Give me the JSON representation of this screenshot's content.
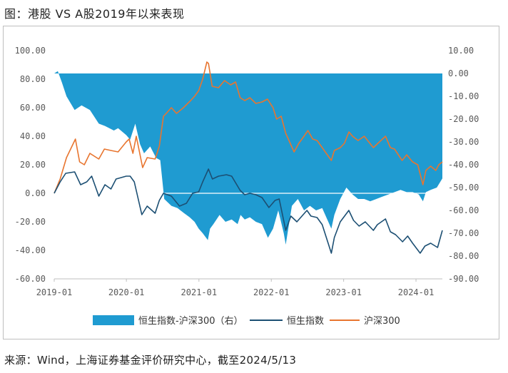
{
  "header": {
    "title": "图：港股 VS A股2019年以来表现"
  },
  "footer": {
    "source": "来源：Wind，上海证券基金评价研究中心，截至2024/5/13"
  },
  "chart_data": {
    "type": "area",
    "x_start": "2019-01-02",
    "x_end": "2024-05-13",
    "x_ticks": [
      {
        "label": "2019-01",
        "date": "2019-01-01"
      },
      {
        "label": "2020-01",
        "date": "2020-01-01"
      },
      {
        "label": "2021-01",
        "date": "2021-01-01"
      },
      {
        "label": "2022-01",
        "date": "2022-01-01"
      },
      {
        "label": "2023-01",
        "date": "2023-01-01"
      },
      {
        "label": "2024-01",
        "date": "2024-01-01"
      }
    ],
    "y_left": {
      "range": [
        -60,
        100
      ],
      "ticks": [
        "100.00",
        "80.00",
        "60.00",
        "40.00",
        "20.00",
        "0.00",
        "-20.00",
        "-40.00",
        "-60.00"
      ]
    },
    "y_right": {
      "range": [
        -90,
        10
      ],
      "ticks": [
        "10.00",
        "0.00",
        "-10.00",
        "-20.00",
        "-30.00",
        "-40.00",
        "-50.00",
        "-60.00",
        "-70.00",
        "-80.00",
        "-90.00"
      ]
    },
    "legend": [
      "恒生指数-沪深300（右）",
      "恒生指数",
      "沪深300"
    ],
    "colors": {
      "area": "#1f9bd1",
      "hsi": "#1c4f73",
      "csi": "#e8752f"
    },
    "series": [
      {
        "name": "沪深300",
        "axis": "left",
        "points": [
          [
            "2019-01-02",
            0
          ],
          [
            "2019-02-01",
            10
          ],
          [
            "2019-03-05",
            25
          ],
          [
            "2019-04-19",
            38
          ],
          [
            "2019-05-10",
            22
          ],
          [
            "2019-06-03",
            20
          ],
          [
            "2019-07-01",
            28
          ],
          [
            "2019-08-15",
            24
          ],
          [
            "2019-09-12",
            31
          ],
          [
            "2019-10-15",
            30
          ],
          [
            "2019-11-20",
            29
          ],
          [
            "2019-12-31",
            36
          ],
          [
            "2020-01-15",
            38
          ],
          [
            "2020-02-03",
            28
          ],
          [
            "2020-02-20",
            40
          ],
          [
            "2020-03-23",
            18
          ],
          [
            "2020-04-15",
            25
          ],
          [
            "2020-05-25",
            24
          ],
          [
            "2020-06-15",
            33
          ],
          [
            "2020-07-06",
            54
          ],
          [
            "2020-07-20",
            56
          ],
          [
            "2020-08-15",
            60
          ],
          [
            "2020-09-10",
            56
          ],
          [
            "2020-10-15",
            60
          ],
          [
            "2020-11-20",
            65
          ],
          [
            "2020-12-10",
            68
          ],
          [
            "2020-12-31",
            72
          ],
          [
            "2021-01-20",
            80
          ],
          [
            "2021-02-10",
            92
          ],
          [
            "2021-02-18",
            91
          ],
          [
            "2021-03-09",
            75
          ],
          [
            "2021-04-10",
            74
          ],
          [
            "2021-05-10",
            79
          ],
          [
            "2021-06-10",
            76
          ],
          [
            "2021-07-05",
            78
          ],
          [
            "2021-07-28",
            67
          ],
          [
            "2021-08-20",
            65
          ],
          [
            "2021-09-15",
            67
          ],
          [
            "2021-10-15",
            63
          ],
          [
            "2021-11-15",
            64
          ],
          [
            "2021-12-13",
            66
          ],
          [
            "2022-01-10",
            60
          ],
          [
            "2022-01-28",
            52
          ],
          [
            "2022-02-20",
            54
          ],
          [
            "2022-03-15",
            42
          ],
          [
            "2022-04-26",
            29
          ],
          [
            "2022-05-20",
            35
          ],
          [
            "2022-06-15",
            40
          ],
          [
            "2022-07-05",
            44
          ],
          [
            "2022-07-29",
            38
          ],
          [
            "2022-08-20",
            37
          ],
          [
            "2022-09-15",
            32
          ],
          [
            "2022-10-31",
            23
          ],
          [
            "2022-11-15",
            30
          ],
          [
            "2022-12-15",
            32
          ],
          [
            "2023-01-05",
            35
          ],
          [
            "2023-01-28",
            43
          ],
          [
            "2023-02-15",
            40
          ],
          [
            "2023-03-15",
            37
          ],
          [
            "2023-04-15",
            40
          ],
          [
            "2023-05-31",
            32
          ],
          [
            "2023-06-15",
            34
          ],
          [
            "2023-07-31",
            40
          ],
          [
            "2023-08-25",
            32
          ],
          [
            "2023-09-15",
            31
          ],
          [
            "2023-10-23",
            23
          ],
          [
            "2023-11-15",
            27
          ],
          [
            "2023-12-15",
            22
          ],
          [
            "2024-01-10",
            20
          ],
          [
            "2024-02-05",
            6
          ],
          [
            "2024-02-20",
            16
          ],
          [
            "2024-03-15",
            19
          ],
          [
            "2024-04-10",
            16
          ],
          [
            "2024-04-25",
            20
          ],
          [
            "2024-05-13",
            22
          ]
        ]
      },
      {
        "name": "恒生指数",
        "axis": "left",
        "points": [
          [
            "2019-01-02",
            0
          ],
          [
            "2019-02-01",
            8
          ],
          [
            "2019-03-01",
            14
          ],
          [
            "2019-04-15",
            15
          ],
          [
            "2019-05-15",
            6
          ],
          [
            "2019-06-15",
            8
          ],
          [
            "2019-07-10",
            12
          ],
          [
            "2019-08-15",
            -2
          ],
          [
            "2019-09-15",
            6
          ],
          [
            "2019-10-15",
            3
          ],
          [
            "2019-11-10",
            10
          ],
          [
            "2019-12-31",
            12
          ],
          [
            "2020-01-20",
            12
          ],
          [
            "2020-02-10",
            8
          ],
          [
            "2020-03-19",
            -15
          ],
          [
            "2020-04-15",
            -9
          ],
          [
            "2020-05-25",
            -14
          ],
          [
            "2020-06-15",
            -5
          ],
          [
            "2020-07-06",
            0
          ],
          [
            "2020-08-15",
            -2
          ],
          [
            "2020-09-25",
            -9
          ],
          [
            "2020-10-30",
            -7
          ],
          [
            "2020-11-30",
            0
          ],
          [
            "2020-12-31",
            1
          ],
          [
            "2021-01-20",
            8
          ],
          [
            "2021-02-18",
            17
          ],
          [
            "2021-03-10",
            10
          ],
          [
            "2021-04-10",
            12
          ],
          [
            "2021-05-20",
            13
          ],
          [
            "2021-06-15",
            12
          ],
          [
            "2021-07-28",
            2
          ],
          [
            "2021-08-20",
            -1
          ],
          [
            "2021-09-15",
            0
          ],
          [
            "2021-10-15",
            -1
          ],
          [
            "2021-11-15",
            -3
          ],
          [
            "2021-12-20",
            -10
          ],
          [
            "2022-01-20",
            -5
          ],
          [
            "2022-02-10",
            -4
          ],
          [
            "2022-03-15",
            -26
          ],
          [
            "2022-04-10",
            -16
          ],
          [
            "2022-05-10",
            -20
          ],
          [
            "2022-06-30",
            -12
          ],
          [
            "2022-07-20",
            -16
          ],
          [
            "2022-08-20",
            -17
          ],
          [
            "2022-09-15",
            -22
          ],
          [
            "2022-10-31",
            -42
          ],
          [
            "2022-11-15",
            -31
          ],
          [
            "2022-12-15",
            -20
          ],
          [
            "2023-01-27",
            -12
          ],
          [
            "2023-02-20",
            -19
          ],
          [
            "2023-03-20",
            -23
          ],
          [
            "2023-04-20",
            -20
          ],
          [
            "2023-05-31",
            -26
          ],
          [
            "2023-06-20",
            -22
          ],
          [
            "2023-07-31",
            -18
          ],
          [
            "2023-08-25",
            -27
          ],
          [
            "2023-09-20",
            -29
          ],
          [
            "2023-10-25",
            -34
          ],
          [
            "2023-11-20",
            -30
          ],
          [
            "2023-12-15",
            -35
          ],
          [
            "2024-01-22",
            -42
          ],
          [
            "2024-02-15",
            -37
          ],
          [
            "2024-03-15",
            -35
          ],
          [
            "2024-04-19",
            -38
          ],
          [
            "2024-05-13",
            -26
          ]
        ]
      },
      {
        "name": "恒生指数-沪深300（右）",
        "axis": "right",
        "type": "area",
        "points": [
          [
            "2019-01-02",
            0
          ],
          [
            "2019-01-20",
            1
          ],
          [
            "2019-02-10",
            -4
          ],
          [
            "2019-03-05",
            -10
          ],
          [
            "2019-04-15",
            -16
          ],
          [
            "2019-05-20",
            -14
          ],
          [
            "2019-07-01",
            -16
          ],
          [
            "2019-08-15",
            -22
          ],
          [
            "2019-09-15",
            -23
          ],
          [
            "2019-10-30",
            -25
          ],
          [
            "2019-11-20",
            -24
          ],
          [
            "2019-12-31",
            -27
          ],
          [
            "2020-01-20",
            -29
          ],
          [
            "2020-02-15",
            -22
          ],
          [
            "2020-03-10",
            -31
          ],
          [
            "2020-03-30",
            -35
          ],
          [
            "2020-04-30",
            -32
          ],
          [
            "2020-05-30",
            -37
          ],
          [
            "2020-06-20",
            -38
          ],
          [
            "2020-07-10",
            -55
          ],
          [
            "2020-08-15",
            -58
          ],
          [
            "2020-09-15",
            -59
          ],
          [
            "2020-10-15",
            -61
          ],
          [
            "2020-11-15",
            -63
          ],
          [
            "2020-12-10",
            -65
          ],
          [
            "2020-12-31",
            -68
          ],
          [
            "2021-01-20",
            -70
          ],
          [
            "2021-02-15",
            -73
          ],
          [
            "2021-02-26",
            -68
          ],
          [
            "2021-03-15",
            -66
          ],
          [
            "2021-04-15",
            -62
          ],
          [
            "2021-05-15",
            -65
          ],
          [
            "2021-06-15",
            -64
          ],
          [
            "2021-07-15",
            -66
          ],
          [
            "2021-07-30",
            -62
          ],
          [
            "2021-08-20",
            -64
          ],
          [
            "2021-09-15",
            -63
          ],
          [
            "2021-10-15",
            -65
          ],
          [
            "2021-11-15",
            -66
          ],
          [
            "2021-12-15",
            -72
          ],
          [
            "2022-01-10",
            -68
          ],
          [
            "2022-02-05",
            -60
          ],
          [
            "2022-03-05",
            -70
          ],
          [
            "2022-03-15",
            -75
          ],
          [
            "2022-04-15",
            -58
          ],
          [
            "2022-05-15",
            -55
          ],
          [
            "2022-06-15",
            -60
          ],
          [
            "2022-07-15",
            -58
          ],
          [
            "2022-08-15",
            -60
          ],
          [
            "2022-09-15",
            -59
          ],
          [
            "2022-10-31",
            -68
          ],
          [
            "2022-11-15",
            -62
          ],
          [
            "2022-12-15",
            -55
          ],
          [
            "2023-01-15",
            -50
          ],
          [
            "2023-02-15",
            -53
          ],
          [
            "2023-03-15",
            -55
          ],
          [
            "2023-04-15",
            -55
          ],
          [
            "2023-05-15",
            -56
          ],
          [
            "2023-06-15",
            -55
          ],
          [
            "2023-07-15",
            -54
          ],
          [
            "2023-08-15",
            -53
          ],
          [
            "2023-09-15",
            -52
          ],
          [
            "2023-10-15",
            -51
          ],
          [
            "2023-11-15",
            -52
          ],
          [
            "2023-12-15",
            -52
          ],
          [
            "2024-01-15",
            -53
          ],
          [
            "2024-02-05",
            -56
          ],
          [
            "2024-02-20",
            -52
          ],
          [
            "2024-03-15",
            -51
          ],
          [
            "2024-04-15",
            -50
          ],
          [
            "2024-05-13",
            -46
          ]
        ]
      }
    ]
  }
}
